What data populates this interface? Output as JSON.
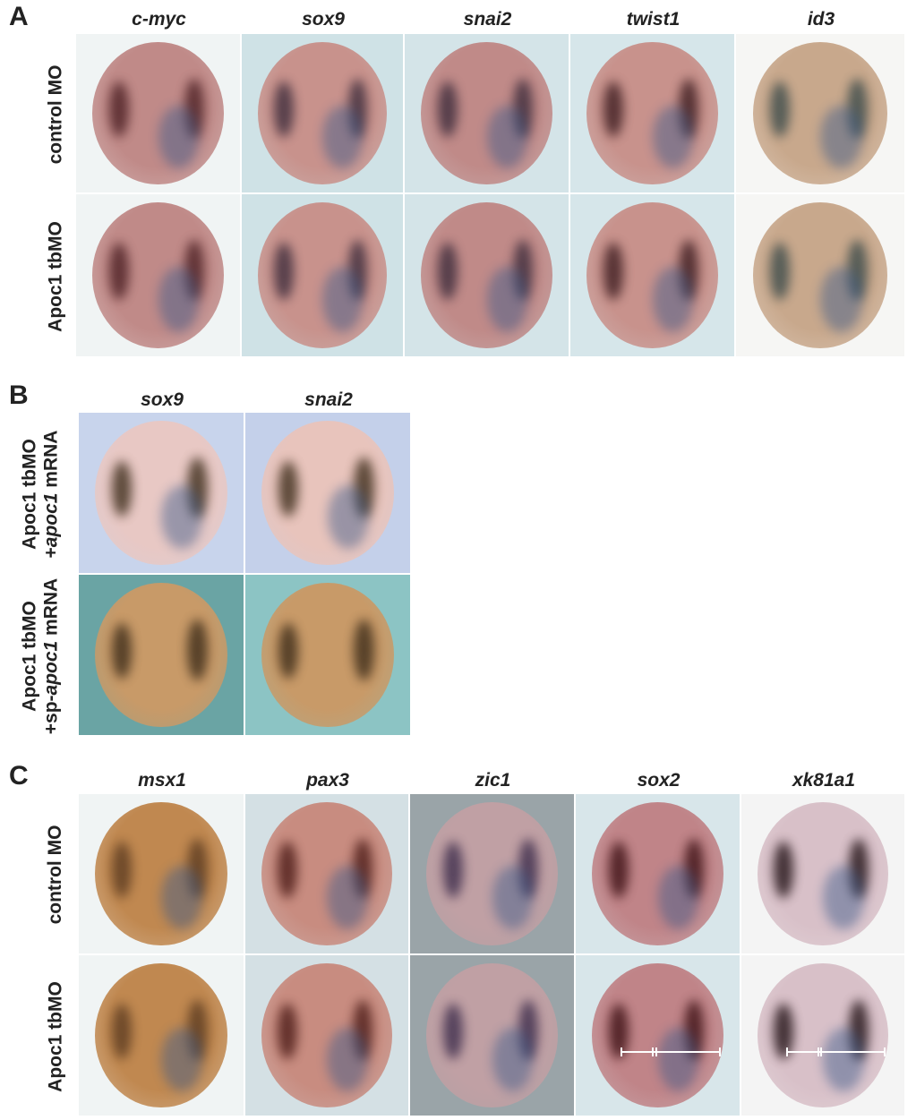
{
  "panels": [
    {
      "label": "A",
      "columns": [
        "c-myc",
        "sox9",
        "snai2",
        "twist1",
        "id3"
      ],
      "rows": [
        {
          "label": "control MO"
        },
        {
          "label": "Apoc1 tbMO"
        }
      ],
      "colors": {
        "background": "#d8e6e8",
        "embryo": "#c08a84",
        "stain_dark": "#5a2a2e",
        "stain_blue": "#3a5a8a"
      }
    },
    {
      "label": "B",
      "columns": [
        "sox9",
        "snai2"
      ],
      "rows": [
        {
          "label_line1": "Apoc1 tbMO",
          "label_line2_prefix": "+",
          "label_line2_italic": "apoc1",
          "label_line2_suffix": " mRNA"
        },
        {
          "label_line1": "Apoc1 tbMO",
          "label_line2_prefix": "+sp-",
          "label_line2_italic": "apoc1",
          "label_line2_suffix": " mRNA"
        }
      ],
      "colors": {
        "background_top": "#c4d0ea",
        "background_bottom": "#6fa8a8",
        "embryo_top": "#e8c8c0",
        "embryo_bottom": "#c8a070"
      }
    },
    {
      "label": "C",
      "columns": [
        "msx1",
        "pax3",
        "zic1",
        "sox2",
        "xk81a1"
      ],
      "rows": [
        {
          "label": "control MO"
        },
        {
          "label": "Apoc1 tbMO"
        }
      ],
      "colors": {
        "background": "#d8e6e8",
        "embryo": "#c08a6a",
        "stain_dark": "#2a1418",
        "scale_bar": "#ffffff"
      }
    }
  ]
}
